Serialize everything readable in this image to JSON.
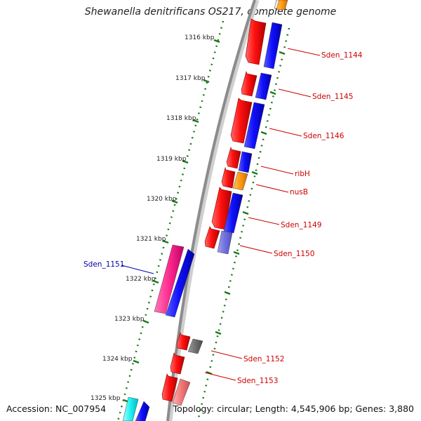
{
  "title": "Shewanella denitrificans OS217, complete genome",
  "footer": {
    "accession": "Accession: NC_007954",
    "summary": "Topology: circular; Length: 4,545,906 bp; Genes: 3,880"
  },
  "ticks": [
    "1316 kbp",
    "1317 kbp",
    "1318 kbp",
    "1319 kbp",
    "1320 kbp",
    "1321 kbp",
    "1322 kbp",
    "1323 kbp",
    "1324 kbp",
    "1325 kbp"
  ],
  "colors": {
    "backbone": "#8c8c8c",
    "tick": "#1a7a1a",
    "label_red": "#cc0000",
    "label_blue": "#0000aa"
  },
  "genes": [
    {
      "name": "Sden_1144",
      "side": "right",
      "color": "#cc0000"
    },
    {
      "name": "Sden_1145",
      "side": "right",
      "color": "#cc0000"
    },
    {
      "name": "Sden_1146",
      "side": "right",
      "color": "#cc0000"
    },
    {
      "name": "ribH",
      "side": "right",
      "color": "#cc0000"
    },
    {
      "name": "nusB",
      "side": "right",
      "color": "#cc0000"
    },
    {
      "name": "Sden_1149",
      "side": "right",
      "color": "#cc0000"
    },
    {
      "name": "Sden_1150",
      "side": "right",
      "color": "#cc0000"
    },
    {
      "name": "Sden_1151",
      "side": "left",
      "color": "#0000aa"
    },
    {
      "name": "Sden_1152",
      "side": "right",
      "color": "#cc0000"
    },
    {
      "name": "Sden_1153",
      "side": "right",
      "color": "#cc0000"
    }
  ]
}
